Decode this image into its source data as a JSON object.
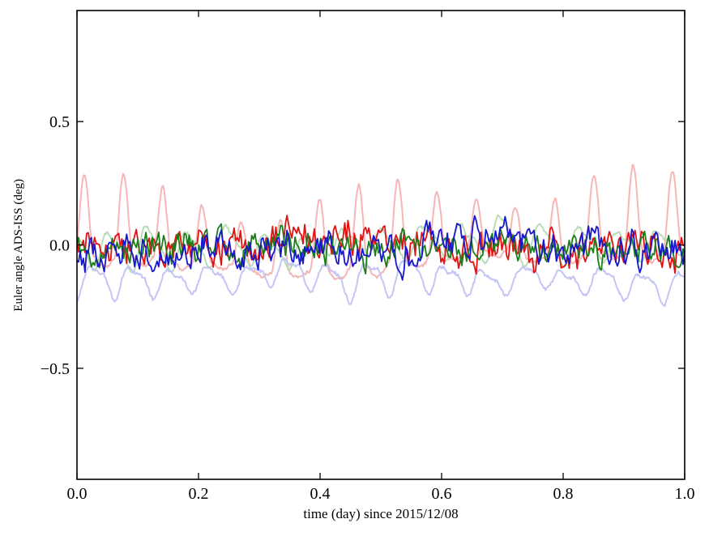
{
  "figure": {
    "background": "#ffffff",
    "frame_color": "#000000"
  },
  "chart_data": {
    "type": "line",
    "title": "",
    "xlabel": "time (day) since 2015/12/08",
    "ylabel": "Euler angle ADS-ISS (deg)",
    "xlim": [
      0.0,
      1.0
    ],
    "ylim": [
      -0.95,
      0.95
    ],
    "grid": false,
    "legend": null,
    "x_ticks": {
      "values": [
        0.0,
        0.2,
        0.4,
        0.6,
        0.8,
        1.0
      ],
      "labels": [
        "0.0",
        "0.2",
        "0.4",
        "0.6",
        "0.8",
        "1.0"
      ]
    },
    "y_ticks": {
      "values": [
        0.5,
        0.0,
        -0.5
      ],
      "labels": [
        "0.5",
        "0.0",
        "−0.5"
      ]
    },
    "tick_style": {
      "direction": "in",
      "length": 8,
      "width": 1.3,
      "sides": "all"
    },
    "description": "Six overlaid time series over one day: three pale curves oscillating at ~15.5 cycles/day (orbital period) and three saturated noisy curves fluctuating near 0 deg.",
    "series": [
      {
        "name": "pale-red",
        "color": "#f6b6b6",
        "width": 2.0,
        "kind": "periodic",
        "seed": 11,
        "n": 700,
        "base": -0.05,
        "amp": 0.27,
        "exp": 2,
        "neg_amp": 0.03,
        "cycles": 15.5,
        "phase": 0.4,
        "mod_amp": 0.3,
        "mod_cycles": 2.3,
        "mod_phase": 0.8,
        "harm_amp": 0.0,
        "harm_phase": 0.0,
        "noise": 0.004,
        "wander": 0.012,
        "observed_mean": 0.04,
        "observed_min": -0.08,
        "observed_max": 0.25
      },
      {
        "name": "pale-green",
        "color": "#b9dcb9",
        "width": 2.0,
        "kind": "periodic",
        "seed": 22,
        "n": 700,
        "base": 0.005,
        "amp": 0.06,
        "exp": 0,
        "neg_amp": 0,
        "cycles": 15.5,
        "phase": 2.4,
        "mod_amp": 0.3,
        "mod_cycles": 1.7,
        "mod_phase": 0.2,
        "harm_amp": 0.022,
        "harm_phase": 0.6,
        "noise": 0.004,
        "wander": 0.01,
        "observed_mean": 0.0,
        "observed_min": -0.08,
        "observed_max": 0.1
      },
      {
        "name": "pale-blue",
        "color": "#c3c6f5",
        "width": 2.0,
        "kind": "periodic",
        "seed": 33,
        "n": 700,
        "base": -0.152,
        "amp": 0.05,
        "exp": 0,
        "neg_amp": 0,
        "cycles": 15.5,
        "phase": 5.1,
        "mod_amp": 0.22,
        "mod_cycles": 2.0,
        "mod_phase": 1.5,
        "harm_amp": 0.02,
        "harm_phase": 1.1,
        "noise": 0.004,
        "wander": 0.012,
        "observed_mean": -0.15,
        "observed_min": -0.22,
        "observed_max": -0.08
      },
      {
        "name": "red",
        "color": "#e11212",
        "width": 1.8,
        "kind": "noisy",
        "seed": 44,
        "n": 380,
        "base": 0.0,
        "fast_a": 0.55,
        "fast_step": 0.12,
        "slow_a": 0.93,
        "slow_step": 0.032,
        "clamp": 0.15,
        "observed_mean": 0.0,
        "observed_min": -0.13,
        "observed_max": 0.13
      },
      {
        "name": "green",
        "color": "#1b7e1b",
        "width": 1.8,
        "kind": "noisy",
        "seed": 55,
        "n": 380,
        "base": -0.005,
        "fast_a": 0.5,
        "fast_step": 0.1,
        "slow_a": 0.93,
        "slow_step": 0.028,
        "clamp": 0.13,
        "observed_mean": 0.0,
        "observed_min": -0.1,
        "observed_max": 0.1
      },
      {
        "name": "blue",
        "color": "#1717cf",
        "width": 1.8,
        "kind": "noisy",
        "seed": 66,
        "n": 380,
        "base": -0.01,
        "fast_a": 0.55,
        "fast_step": 0.11,
        "slow_a": 0.94,
        "slow_step": 0.03,
        "clamp": 0.15,
        "observed_mean": -0.01,
        "observed_min": -0.14,
        "observed_max": 0.12
      }
    ]
  }
}
